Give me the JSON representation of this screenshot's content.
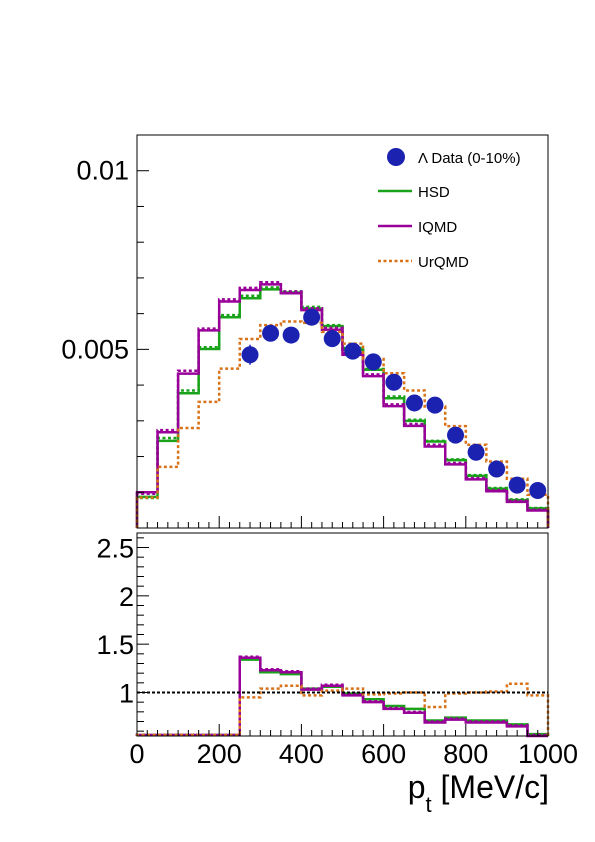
{
  "chart_data": [
    {
      "type": "line",
      "panel": "main",
      "x_unit_label": "p",
      "x_unit_sub": "t",
      "x_unit_rest": " [MeV/c]",
      "xlim": [
        0,
        1000
      ],
      "ylim": [
        0.0,
        0.011
      ],
      "yticks": [
        {
          "value": 0.005,
          "label": "0.005"
        },
        {
          "value": 0.01,
          "label": "0.01"
        }
      ],
      "legend": {
        "placement": "top-right",
        "entries": [
          {
            "key": "data",
            "label": "Λ Data (0-10%)",
            "style": "marker",
            "color": "#1c22b0"
          },
          {
            "key": "hsd",
            "label": "HSD",
            "style": "solid",
            "color": "#1aa31a"
          },
          {
            "key": "iqmd",
            "label": "IQMD",
            "style": "solid",
            "color": "#990099"
          },
          {
            "key": "urqmd",
            "label": "UrQMD",
            "style": "dotted",
            "color": "#d9731a"
          }
        ]
      },
      "bin_edges": [
        0,
        50,
        100,
        150,
        200,
        250,
        300,
        350,
        400,
        450,
        500,
        550,
        600,
        650,
        700,
        750,
        800,
        850,
        900,
        950,
        1000
      ],
      "histograms": [
        {
          "key": "hsd",
          "color": "#1aa31a",
          "dash": false,
          "values": [
            0.00087,
            0.00244,
            0.00377,
            0.00501,
            0.0059,
            0.00643,
            0.00668,
            0.00659,
            0.00614,
            0.00565,
            0.00499,
            0.00443,
            0.00363,
            0.003,
            0.00242,
            0.0019,
            0.00146,
            0.0011,
            0.00078,
            0.00055
          ]
        },
        {
          "key": "hsd_alt",
          "color": "#1aa31a",
          "dash": true,
          "values": [
            0.00084,
            0.00252,
            0.00385,
            0.00506,
            0.00596,
            0.0065,
            0.00673,
            0.00662,
            0.00619,
            0.00568,
            0.00504,
            0.00445,
            0.00368,
            0.00303,
            0.00244,
            0.00192,
            0.00148,
            0.00112,
            0.0008,
            0.00056
          ]
        },
        {
          "key": "iqmd",
          "color": "#990099",
          "dash": false,
          "values": [
            0.001,
            0.00268,
            0.00432,
            0.00553,
            0.00634,
            0.00666,
            0.00682,
            0.00657,
            0.0061,
            0.00555,
            0.00485,
            0.00425,
            0.00341,
            0.00286,
            0.00228,
            0.00178,
            0.00136,
            0.00103,
            0.00073,
            0.00049
          ]
        },
        {
          "key": "iqmd_alt",
          "color": "#990099",
          "dash": true,
          "values": [
            0.00096,
            0.00274,
            0.0044,
            0.00558,
            0.0064,
            0.00672,
            0.00688,
            0.00662,
            0.00615,
            0.0056,
            0.0049,
            0.0043,
            0.00346,
            0.00291,
            0.00233,
            0.00182,
            0.0014,
            0.00106,
            0.00076,
            0.00051
          ]
        },
        {
          "key": "urqmd",
          "color": "#d9731a",
          "dash": true,
          "values": [
            0.00085,
            0.00171,
            0.0028,
            0.00353,
            0.00446,
            0.00529,
            0.00568,
            0.00578,
            0.00574,
            0.00549,
            0.00516,
            0.00473,
            0.00433,
            0.00385,
            0.0034,
            0.00285,
            0.00233,
            0.00186,
            0.00138,
            0.00093
          ]
        }
      ],
      "data_points": [
        {
          "x": 275,
          "y": 0.00485,
          "err": 0.00028
        },
        {
          "x": 325,
          "y": 0.00545,
          "err": 0.00018
        },
        {
          "x": 375,
          "y": 0.0054,
          "err": 0.00015
        },
        {
          "x": 425,
          "y": 0.0059,
          "err": 0.00015
        },
        {
          "x": 475,
          "y": 0.0053,
          "err": 0.00014
        },
        {
          "x": 525,
          "y": 0.00495,
          "err": 0.00012
        },
        {
          "x": 575,
          "y": 0.00465,
          "err": 0.00012
        },
        {
          "x": 625,
          "y": 0.00408,
          "err": 0.00011
        },
        {
          "x": 675,
          "y": 0.0035,
          "err": 0.0001
        },
        {
          "x": 725,
          "y": 0.00344,
          "err": 0.0001
        },
        {
          "x": 775,
          "y": 0.0026,
          "err": 9e-05
        },
        {
          "x": 825,
          "y": 0.00212,
          "err": 8e-05
        },
        {
          "x": 875,
          "y": 0.00165,
          "err": 7e-05
        },
        {
          "x": 925,
          "y": 0.0012,
          "err": 6e-05
        },
        {
          "x": 975,
          "y": 0.00105,
          "err": 5e-05
        }
      ]
    },
    {
      "type": "line",
      "panel": "ratio",
      "xlim": [
        0,
        1000
      ],
      "ylim": [
        0.55,
        2.65
      ],
      "xticks": [
        {
          "value": 0,
          "label": "0"
        },
        {
          "value": 200,
          "label": "200"
        },
        {
          "value": 400,
          "label": "400"
        },
        {
          "value": 600,
          "label": "600"
        },
        {
          "value": 800,
          "label": "800"
        },
        {
          "value": 1000,
          "label": "1000"
        }
      ],
      "yticks": [
        {
          "value": 1.0,
          "label": "1"
        },
        {
          "value": 1.5,
          "label": "1.5"
        },
        {
          "value": 2.0,
          "label": "2"
        },
        {
          "value": 2.5,
          "label": "2.5"
        }
      ],
      "reference_line": 1.0,
      "bin_edges": [
        0,
        50,
        100,
        150,
        200,
        250,
        300,
        350,
        400,
        450,
        500,
        550,
        600,
        650,
        700,
        750,
        800,
        850,
        900,
        950,
        1000
      ],
      "histograms": [
        {
          "key": "hsd",
          "color": "#1aa31a",
          "dash": false,
          "values": [
            0.56,
            0.56,
            0.56,
            0.56,
            0.56,
            1.34,
            1.21,
            1.19,
            1.04,
            1.06,
            0.99,
            0.93,
            0.86,
            0.83,
            0.71,
            0.74,
            0.71,
            0.71,
            0.67,
            0.57
          ]
        },
        {
          "key": "iqmd",
          "color": "#990099",
          "dash": false,
          "values": [
            0.56,
            0.56,
            0.56,
            0.56,
            0.56,
            1.36,
            1.23,
            1.21,
            1.03,
            1.07,
            0.97,
            0.9,
            0.83,
            0.79,
            0.69,
            0.72,
            0.69,
            0.69,
            0.65,
            0.55
          ]
        },
        {
          "key": "iqmd_alt",
          "color": "#990099",
          "dash": true,
          "values": [
            0.56,
            0.56,
            0.56,
            0.56,
            0.56,
            1.37,
            1.24,
            1.22,
            1.04,
            1.08,
            0.98,
            0.91,
            0.84,
            0.8,
            0.7,
            0.73,
            0.7,
            0.7,
            0.66,
            0.56
          ]
        },
        {
          "key": "urqmd",
          "color": "#d9731a",
          "dash": true,
          "values": [
            0.56,
            0.56,
            0.56,
            0.56,
            0.56,
            0.95,
            1.04,
            1.07,
            0.97,
            1.02,
            1.04,
            0.98,
            0.99,
            1.0,
            0.85,
            0.99,
            1.0,
            1.01,
            1.09,
            0.97
          ]
        }
      ]
    }
  ]
}
